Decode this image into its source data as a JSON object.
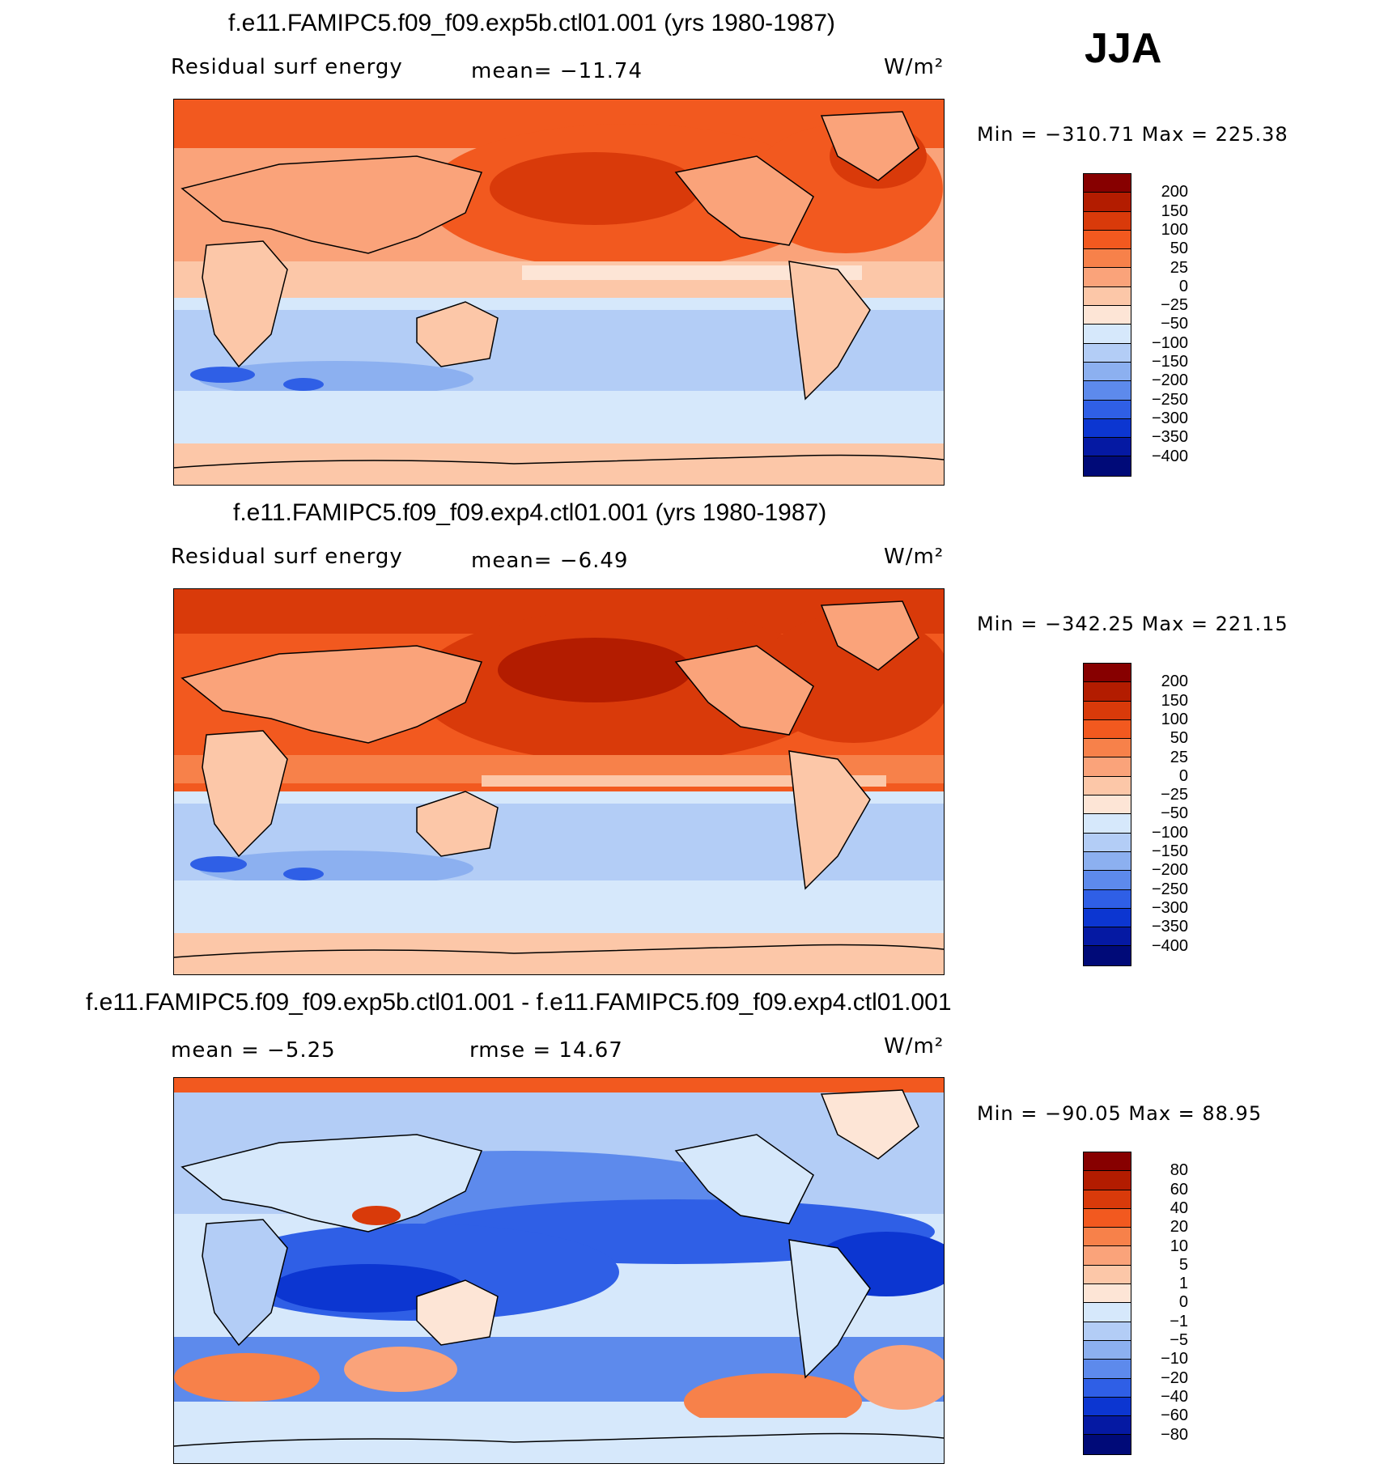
{
  "season": "JJA",
  "panels": [
    {
      "title": "f.e11.FAMIPC5.f09_f09.exp5b.ctl01.001 (yrs 1980-1987)",
      "left_label": "Residual surf energy",
      "mean_label": "mean=  −11.74",
      "units": "W/m²",
      "minmax": "Min  =  −310.71  Max  =  225.38",
      "levels": [
        "200",
        "150",
        "100",
        "50",
        "25",
        "0",
        "−25",
        "−50",
        "−100",
        "−150",
        "−200",
        "−250",
        "−300",
        "−350",
        "−400"
      ]
    },
    {
      "title": "f.e11.FAMIPC5.f09_f09.exp4.ctl01.001 (yrs 1980-1987)",
      "left_label": "Residual surf energy",
      "mean_label": "mean=   −6.49",
      "units": "W/m²",
      "minmax": "Min  =  −342.25  Max  =  221.15",
      "levels": [
        "200",
        "150",
        "100",
        "50",
        "25",
        "0",
        "−25",
        "−50",
        "−100",
        "−150",
        "−200",
        "−250",
        "−300",
        "−350",
        "−400"
      ]
    },
    {
      "title": "f.e11.FAMIPC5.f09_f09.exp5b.ctl01.001 - f.e11.FAMIPC5.f09_f09.exp4.ctl01.001",
      "left_label": "mean  =   −5.25",
      "mean_label": "rmse  =   14.67",
      "units": "W/m²",
      "minmax": "Min  =  −90.05  Max  =   88.95",
      "levels": [
        "80",
        "60",
        "40",
        "20",
        "10",
        "5",
        "1",
        "0",
        "−1",
        "−5",
        "−10",
        "−20",
        "−40",
        "−60",
        "−80"
      ]
    }
  ],
  "colors": {
    "scale": [
      "#870000",
      "#b31c00",
      "#d93a0a",
      "#f2591f",
      "#f7814a",
      "#faa37a",
      "#fcc7a8",
      "#fde5d6",
      "#d6e8fb",
      "#b3cdf6",
      "#8cb0f0",
      "#5d8aec",
      "#2f5fe6",
      "#0c36d1",
      "#0519a3",
      "#000a78"
    ]
  }
}
